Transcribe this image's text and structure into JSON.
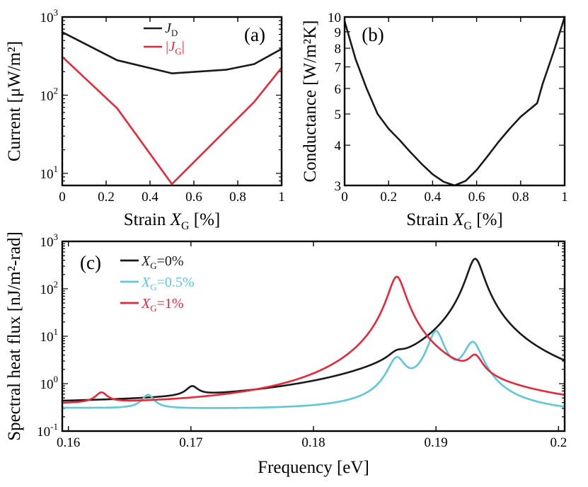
{
  "colors": {
    "black": "#1a1a1a",
    "cyan": "#5cc8d8",
    "red": "#e8283a"
  },
  "chart_data": [
    {
      "panel_label": "(a)",
      "type": "line",
      "ylabel": "Current [μW/m²]",
      "xlabel_main": "Strain ",
      "xlabel_var": "X",
      "xlabel_sub": "G",
      "xlabel_unit": " [%]",
      "xlim": [
        0,
        1
      ],
      "ylim": [
        7,
        1000
      ],
      "yscale": "log",
      "xticks": [
        0,
        0.2,
        0.4,
        0.6,
        0.8,
        1
      ],
      "xtick_labels": [
        "0",
        "0.2",
        "0.4",
        "0.6",
        "0.8",
        "1"
      ],
      "ytick_labels": [
        {
          "value": 10,
          "base": "10",
          "exp": "1"
        },
        {
          "value": 100,
          "base": "10",
          "exp": "2"
        },
        {
          "value": 1000,
          "base": "10",
          "exp": "3"
        }
      ],
      "legend_position": "top-right",
      "series": [
        {
          "name": "J_D",
          "label_main": "J",
          "label_sub": "D",
          "color_key": "black",
          "x": [
            0,
            0.25,
            0.5,
            0.75,
            0.875,
            1
          ],
          "y": [
            640,
            280,
            190,
            212,
            250,
            390
          ]
        },
        {
          "name": "|J_G|",
          "label_main": "|J",
          "label_sub": "G",
          "label_tail": "|",
          "color_key": "red",
          "x": [
            0,
            0.25,
            0.5,
            0.875,
            1
          ],
          "y": [
            310,
            68,
            7.3,
            82,
            225
          ]
        }
      ]
    },
    {
      "panel_label": "(b)",
      "type": "line",
      "ylabel": "Conductance [W/m²K]",
      "xlabel_main": "Strain ",
      "xlabel_var": "X",
      "xlabel_sub": "G",
      "xlabel_unit": " [%]",
      "xlim": [
        0,
        1
      ],
      "ylim": [
        3,
        10
      ],
      "yscale": "log",
      "xticks": [
        0,
        0.2,
        0.4,
        0.6,
        0.8,
        1
      ],
      "xtick_labels": [
        "0",
        "0.2",
        "0.4",
        "0.6",
        "0.8",
        "1"
      ],
      "yticks": [
        3,
        4,
        5,
        6,
        7,
        8,
        9,
        10
      ],
      "ytick_labels": [
        "3",
        "4",
        "5",
        "6",
        "7",
        "8",
        "9",
        "10"
      ],
      "series": [
        {
          "name": "Conductance",
          "color_key": "black",
          "x": [
            0,
            0.05,
            0.1,
            0.15,
            0.2,
            0.25,
            0.3,
            0.35,
            0.4,
            0.45,
            0.5,
            0.55,
            0.6,
            0.65,
            0.7,
            0.75,
            0.8,
            0.875,
            0.9,
            0.95,
            1
          ],
          "y": [
            9.7,
            7.4,
            6.0,
            5.0,
            4.5,
            4.15,
            3.8,
            3.5,
            3.25,
            3.08,
            3.0,
            3.1,
            3.35,
            3.7,
            4.1,
            4.5,
            4.9,
            5.4,
            6.2,
            7.8,
            10.0
          ]
        }
      ]
    },
    {
      "panel_label": "(c)",
      "type": "line",
      "ylabel": "Spectral heat flux [nJ/m²-rad]",
      "xlabel": "Frequency [eV]",
      "xlim": [
        0.1595,
        0.2005
      ],
      "ylim": [
        0.1,
        1000
      ],
      "yscale": "log",
      "xticks": [
        0.16,
        0.17,
        0.18,
        0.19,
        0.2
      ],
      "xtick_labels": [
        "0.16",
        "0.17",
        "0.18",
        "0.19",
        "0.2"
      ],
      "ytick_labels": [
        {
          "value": 0.1,
          "base": "10",
          "exp": "-1"
        },
        {
          "value": 1,
          "base": "10",
          "exp": "0"
        },
        {
          "value": 10,
          "base": "10",
          "exp": "1"
        },
        {
          "value": 100,
          "base": "10",
          "exp": "2"
        },
        {
          "value": 1000,
          "base": "10",
          "exp": "3"
        }
      ],
      "legend_position": "top-left",
      "series": [
        {
          "name": "X_G=0%",
          "label_main": "X",
          "label_sub": "G",
          "label_tail": "=0%",
          "color_key": "black",
          "baseline": [
            0.3,
            0.22
          ],
          "peaks": [
            {
              "x0": 0.1701,
              "peak": 0.62,
              "width": 0.00055
            },
            {
              "x0": 0.1868,
              "peak": 1.45,
              "width": 0.0007
            },
            {
              "x0": 0.1932,
              "peak": 430,
              "width": 0.0006
            }
          ]
        },
        {
          "name": "X_G=0.5%",
          "label_main": "X",
          "label_sub": "G",
          "label_tail": "=0.5%",
          "color_key": "cyan",
          "baseline": [
            0.3,
            0.22
          ],
          "peaks": [
            {
              "x0": 0.1665,
              "peak": 0.58,
              "width": 0.00055
            },
            {
              "x0": 0.1868,
              "peak": 3.2,
              "width": 0.0007
            },
            {
              "x0": 0.19,
              "peak": 12.5,
              "width": 0.0006
            },
            {
              "x0": 0.193,
              "peak": 7.2,
              "width": 0.0007
            }
          ]
        },
        {
          "name": "X_G=1%",
          "label_main": "X",
          "label_sub": "G",
          "label_tail": "=1%",
          "color_key": "red",
          "baseline": [
            0.3,
            0.22
          ],
          "peaks": [
            {
              "x0": 0.1627,
              "peak": 0.55,
              "width": 0.00055
            },
            {
              "x0": 0.1868,
              "peak": 180,
              "width": 0.0006
            },
            {
              "x0": 0.1932,
              "peak": 2.6,
              "width": 0.0006
            }
          ]
        }
      ]
    }
  ]
}
